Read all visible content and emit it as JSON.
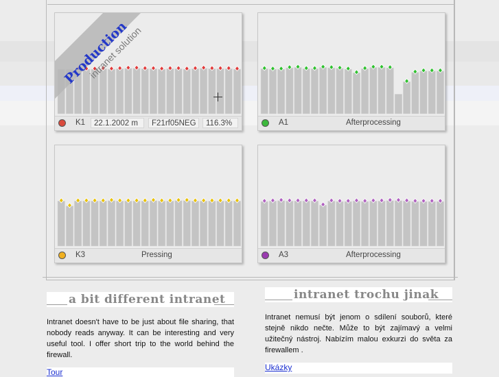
{
  "ribbon": {
    "title": "Production",
    "subtitle": "intranet solution"
  },
  "panels": [
    {
      "id": "k1",
      "led_color": "#d94a3c",
      "label": "K1",
      "date": "22.1.2002 m",
      "code": "F21rf05NEG",
      "percent": "116.3%",
      "marker_color": "#e03a3a",
      "values": [
        100,
        100,
        100,
        100,
        100,
        101,
        100,
        101,
        102,
        102,
        101,
        101,
        100,
        101,
        101,
        100,
        101,
        102,
        101,
        101,
        101,
        100
      ],
      "markers_start": 2
    },
    {
      "id": "a1",
      "led_color": "#3cb83c",
      "label": "A1",
      "status": "Afterprocessing",
      "marker_color": "#2ec02e",
      "values": [
        101,
        100,
        100,
        103,
        104,
        101,
        101,
        104,
        103,
        102,
        100,
        92,
        101,
        104,
        104,
        103,
        44,
        72,
        93,
        96,
        96,
        96
      ],
      "markers_hidden": [
        16
      ]
    },
    {
      "id": "k3",
      "led_color": "#f0b020",
      "label": "K3",
      "status": "Pressing",
      "marker_color": "#e8c000",
      "values": [
        101,
        90,
        101,
        101,
        101,
        101,
        102,
        101,
        101,
        101,
        101,
        102,
        101,
        101,
        102,
        102,
        101,
        101,
        101,
        101,
        101,
        101
      ]
    },
    {
      "id": "a3",
      "led_color": "#9a3ab0",
      "label": "A3",
      "status": "Afterprocessing",
      "marker_color": "#b060c0",
      "values": [
        100,
        101,
        102,
        101,
        101,
        101,
        101,
        92,
        101,
        100,
        100,
        101,
        100,
        101,
        101,
        102,
        102,
        101,
        100,
        100,
        100,
        100
      ]
    }
  ],
  "columns": {
    "english": {
      "title": "a bit different intranet",
      "text": "Intranet doesn't have to be just about file sharing, that nobody reads anyway. It can be interesting and very useful tool. I offer short trip to the world behind the firewall.",
      "link": "Tour"
    },
    "czech": {
      "title": "intranet trochu jinak",
      "text": "Intranet nemusí být jenom o sdílení souborů, které stejně nikdo nečte. Může to být zajímavý a velmi užitečný nástroj. Nabízím malou exkurzi do světa za firewallem .",
      "link": "Ukázky"
    }
  }
}
